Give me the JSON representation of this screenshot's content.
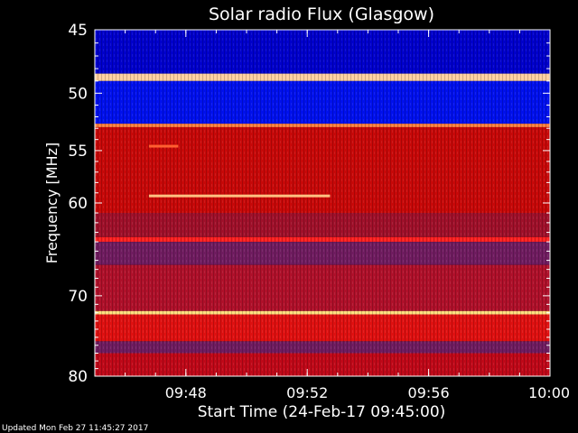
{
  "chart_data": {
    "type": "heatmap",
    "title": "Solar radio Flux (Glasgow)",
    "xlabel": "Start Time (24-Feb-17 09:45:00)",
    "ylabel": "Frequency [MHz]",
    "xlim": [
      "09:45",
      "10:00"
    ],
    "ylim": [
      45,
      80
    ],
    "y_scale": "log",
    "x_ticks": [
      "09:48",
      "09:52",
      "09:56",
      "10:00"
    ],
    "y_ticks": [
      45,
      50,
      55,
      60,
      70,
      80
    ],
    "colormap": [
      "#000080",
      "#0000ff",
      "#6020a0",
      "#c00010",
      "#ff2000",
      "#ff8020",
      "#ffe090"
    ],
    "bands": [
      {
        "f1": 45.0,
        "f2": 48.4,
        "color": "#0000cc"
      },
      {
        "f1": 48.4,
        "f2": 49.0,
        "color": "#ffd0a0"
      },
      {
        "f1": 49.0,
        "f2": 52.6,
        "color": "#0010ee"
      },
      {
        "f1": 52.6,
        "f2": 52.9,
        "color": "#ff8040"
      },
      {
        "f1": 52.9,
        "f2": 61.0,
        "color": "#c80808"
      },
      {
        "f1": 61.0,
        "f2": 63.5,
        "color": "#a0102a"
      },
      {
        "f1": 63.5,
        "f2": 64.0,
        "color": "#ff2020"
      },
      {
        "f1": 64.0,
        "f2": 66.5,
        "color": "#701c60"
      },
      {
        "f1": 66.5,
        "f2": 71.8,
        "color": "#b0102a"
      },
      {
        "f1": 71.8,
        "f2": 72.2,
        "color": "#ffe080"
      },
      {
        "f1": 72.2,
        "f2": 75.5,
        "color": "#e01010"
      },
      {
        "f1": 75.5,
        "f2": 77.0,
        "color": "#701c60"
      },
      {
        "f1": 77.0,
        "f2": 80.0,
        "color": "#c00818"
      }
    ],
    "features": [
      {
        "t1": "09:46:47",
        "t2": "09:52:45",
        "f": 59.3,
        "color": "#ffc080"
      },
      {
        "t1": "09:46:47",
        "t2": "09:47:45",
        "f": 54.6,
        "color": "#ff6030"
      }
    ],
    "footer": "Updated Mon Feb 27 11:45:27 2017"
  }
}
